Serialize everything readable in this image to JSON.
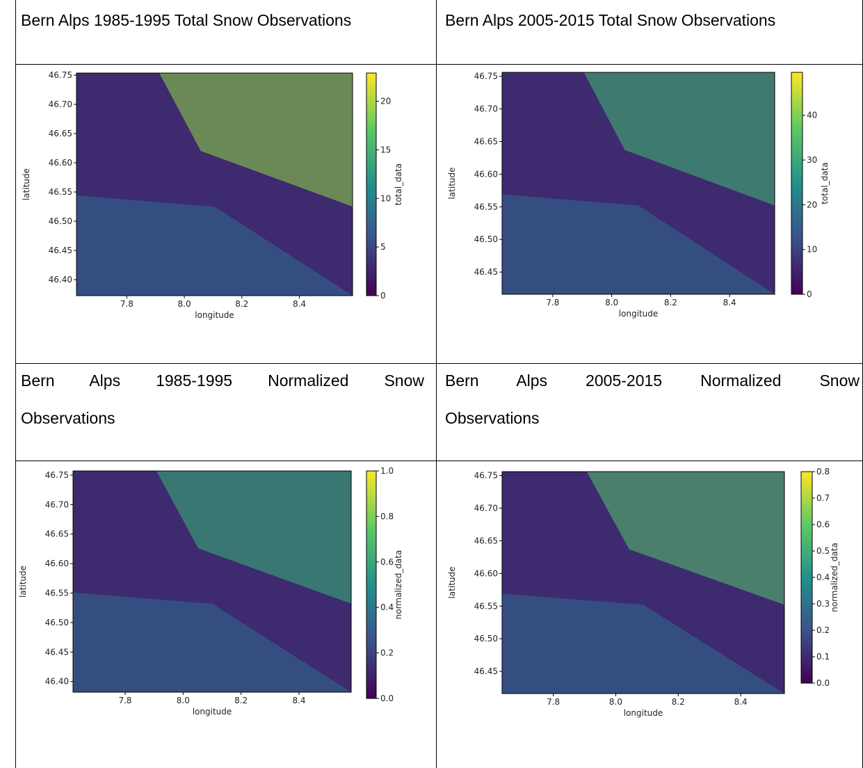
{
  "table": {
    "rows": [
      [
        "Bern Alps 1985-1995 Total Snow Observations",
        "Bern Alps 2005-2015 Total Snow Observations"
      ],
      [
        "Bern Alps 1985-1995 Normalized Snow Observations",
        "Bern Alps 2005-2015 Normalized Snow Observations"
      ]
    ]
  },
  "plots": [
    {
      "xlabel": "longitude",
      "ylabel": "latitude",
      "xlim": [
        7.625,
        8.585
      ],
      "ylim": [
        46.3726,
        46.7536
      ],
      "xticks": [
        7.8,
        {
          "value": 8.0,
          "label": "8.0"
        },
        8.2,
        8.4
      ],
      "yticks": [
        {
          "value": 46.4,
          "label": "46.40"
        },
        46.45,
        {
          "value": 46.5,
          "label": "46.50"
        },
        46.55,
        {
          "value": 46.6,
          "label": "46.60"
        },
        46.65,
        {
          "value": 46.7,
          "label": "46.70"
        },
        46.75
      ],
      "colorbar": {
        "label": "total_data",
        "lim": [
          0,
          22.9
        ],
        "ticks": [
          0,
          5,
          10,
          15,
          20
        ]
      }
    },
    {
      "xlabel": "longitude",
      "ylabel": "latitude",
      "xlim": [
        7.628,
        8.553
      ],
      "ylim": [
        46.416,
        46.756
      ],
      "xticks": [
        7.8,
        {
          "value": 8.0,
          "label": "8.0"
        },
        8.2,
        8.4
      ],
      "yticks": [
        46.45,
        {
          "value": 46.5,
          "label": "46.50"
        },
        46.55,
        {
          "value": 46.6,
          "label": "46.60"
        },
        46.65,
        {
          "value": 46.7,
          "label": "46.70"
        },
        46.75
      ],
      "colorbar": {
        "label": "total_data",
        "lim": [
          0,
          49.6
        ],
        "ticks": [
          0,
          10,
          20,
          30,
          40
        ]
      }
    },
    {
      "xlabel": "longitude",
      "ylabel": "latitude",
      "xlim": [
        7.62,
        8.58
      ],
      "ylim": [
        46.382,
        46.757
      ],
      "xticks": [
        7.8,
        {
          "value": 8.0,
          "label": "8.0"
        },
        8.2,
        8.4
      ],
      "yticks": [
        {
          "value": 46.4,
          "label": "46.40"
        },
        46.45,
        {
          "value": 46.5,
          "label": "46.50"
        },
        46.55,
        {
          "value": 46.6,
          "label": "46.60"
        },
        46.65,
        {
          "value": 46.7,
          "label": "46.70"
        },
        46.75
      ],
      "colorbar": {
        "label": "normalized_data",
        "lim": [
          0,
          1
        ],
        "ticks": [
          {
            "value": 0,
            "label": "0.0"
          },
          0.2,
          0.4,
          0.6,
          0.8,
          {
            "value": 1,
            "label": "1.0"
          }
        ]
      }
    },
    {
      "xlabel": "longitude",
      "ylabel": "latitude",
      "xlim": [
        7.636,
        8.54
      ],
      "ylim": [
        46.416,
        46.756
      ],
      "xticks": [
        7.8,
        {
          "value": 8.0,
          "label": "8.0"
        },
        8.2,
        8.4
      ],
      "yticks": [
        46.45,
        {
          "value": 46.5,
          "label": "46.50"
        },
        46.55,
        {
          "value": 46.6,
          "label": "46.60"
        },
        46.65,
        {
          "value": 46.7,
          "label": "46.70"
        },
        46.75
      ],
      "colorbar": {
        "label": "normalized_data",
        "lim": [
          0,
          0.8
        ],
        "ticks": [
          {
            "value": 0,
            "label": "0.0"
          },
          0.1,
          0.2,
          0.3,
          0.4,
          0.5,
          0.6,
          0.7,
          0.8
        ]
      }
    }
  ]
}
